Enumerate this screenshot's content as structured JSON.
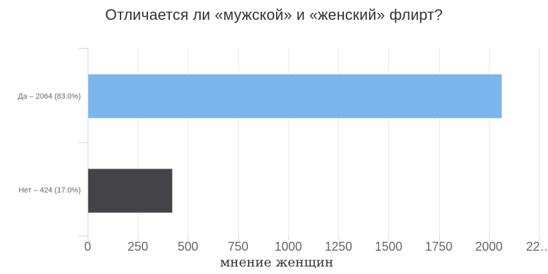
{
  "chart_data": {
    "type": "bar",
    "orientation": "horizontal",
    "title": "Отличается ли «мужской» и «женский» флирт?",
    "categories": [
      "Да – 2064 (83.0%)",
      "Нет – 424 (17.0%)"
    ],
    "values": [
      2064,
      424
    ],
    "percent_values": [
      83.0,
      17.0
    ],
    "bar_colors": [
      "#7cb5ec",
      "#434348"
    ],
    "xlabel": "мнение женщин",
    "xlim": [
      0,
      2250
    ],
    "x_ticks": [
      {
        "value": 0,
        "label": "0"
      },
      {
        "value": 250,
        "label": "250"
      },
      {
        "value": 500,
        "label": "500"
      },
      {
        "value": 750,
        "label": "750"
      },
      {
        "value": 1000,
        "label": "1000"
      },
      {
        "value": 1250,
        "label": "1250"
      },
      {
        "value": 1500,
        "label": "1500"
      },
      {
        "value": 1750,
        "label": "1750"
      },
      {
        "value": 2000,
        "label": "2000"
      },
      {
        "value": 2250,
        "label": "22…"
      }
    ],
    "grid": true,
    "legend": false,
    "colors": {
      "title": "#333333",
      "grid": "#e6e6e6",
      "axis": "#ccd6eb",
      "tick_label": "#666666",
      "category_label": "#666666",
      "axis_title": "#333333"
    }
  }
}
